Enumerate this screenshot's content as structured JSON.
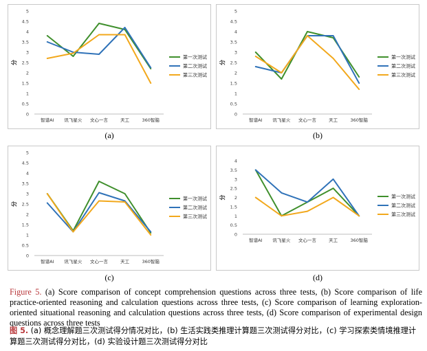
{
  "chart_data": [
    {
      "type": "line",
      "label": "(a)",
      "ylabel": "分",
      "ylim": [
        0,
        5
      ],
      "yticks": [
        "0",
        "0.5",
        "1",
        "1.5",
        "2",
        "2.5",
        "3",
        "3.5",
        "4",
        "4.5",
        "5"
      ],
      "categories": [
        "智谱AI",
        "讯飞星火",
        "文心一言",
        "天工",
        "360智脑"
      ],
      "series": [
        {
          "name": "第一次测试",
          "color": "#3f8f2c",
          "values": [
            3.8,
            2.8,
            4.4,
            4.1,
            2.2
          ]
        },
        {
          "name": "第二次测试",
          "color": "#2f72b8",
          "values": [
            3.5,
            3.0,
            2.9,
            4.2,
            2.25
          ]
        },
        {
          "name": "第三次测试",
          "color": "#f2a81c",
          "values": [
            2.7,
            2.95,
            3.85,
            3.85,
            1.5
          ]
        }
      ]
    },
    {
      "type": "line",
      "label": "(b)",
      "ylabel": "分",
      "ylim": [
        0,
        5
      ],
      "yticks": [
        "0",
        "0.5",
        "1",
        "1.5",
        "2",
        "2.5",
        "3",
        "3.5",
        "4",
        "4.5",
        "5"
      ],
      "categories": [
        "智谱AI",
        "讯飞星火",
        "文心一言",
        "天工",
        "360智脑"
      ],
      "series": [
        {
          "name": "第一次测试",
          "color": "#3f8f2c",
          "values": [
            3.0,
            1.7,
            4.0,
            3.7,
            1.8
          ]
        },
        {
          "name": "第二次测试",
          "color": "#2f72b8",
          "values": [
            2.3,
            2.0,
            3.8,
            3.8,
            1.5
          ]
        },
        {
          "name": "第三次测试",
          "color": "#f2a81c",
          "values": [
            2.8,
            2.0,
            3.8,
            2.7,
            1.2
          ]
        }
      ]
    },
    {
      "type": "line",
      "label": "(c)",
      "ylabel": "分",
      "ylim": [
        0,
        5
      ],
      "yticks": [
        "0",
        "0.5",
        "1",
        "1.5",
        "2",
        "2.5",
        "3",
        "3.5",
        "4",
        "4.5",
        "5"
      ],
      "categories": [
        "智谱AI",
        "讯飞星火",
        "文心一言",
        "天工",
        "360智脑"
      ],
      "series": [
        {
          "name": "第一次测试",
          "color": "#3f8f2c",
          "values": [
            3.0,
            1.2,
            3.6,
            3.0,
            1.1
          ]
        },
        {
          "name": "第二次测试",
          "color": "#2f72b8",
          "values": [
            2.55,
            1.15,
            3.05,
            2.65,
            1.15
          ]
        },
        {
          "name": "第三次测试",
          "color": "#f2a81c",
          "values": [
            3.0,
            1.15,
            2.65,
            2.6,
            1.0
          ]
        }
      ]
    },
    {
      "type": "line",
      "label": "(d)",
      "ylabel": "分",
      "ylim": [
        0,
        4
      ],
      "yticks": [
        "0",
        "0.5",
        "1",
        "1.5",
        "2",
        "2.5",
        "3",
        "3.5",
        "4"
      ],
      "categories": [
        "智谱AI",
        "讯飞星火",
        "文心一言",
        "天工",
        "360智脑"
      ],
      "series": [
        {
          "name": "第一次测试",
          "color": "#3f8f2c",
          "values": [
            3.5,
            1.0,
            1.75,
            2.5,
            1.0
          ]
        },
        {
          "name": "第二次测试",
          "color": "#2f72b8",
          "values": [
            3.5,
            2.25,
            1.75,
            3.0,
            1.0
          ]
        },
        {
          "name": "第三次测试",
          "color": "#f2a81c",
          "values": [
            2.0,
            1.0,
            1.25,
            2.0,
            1.0
          ]
        }
      ]
    }
  ],
  "caption": {
    "en_label": "Figure 5.",
    "en_text": " (a) Score comparison of concept comprehension questions across three tests, (b) Score comparison of life practice-oriented reasoning and calculation questions across three tests, (c) Score comparison of learning exploration-oriented situational reasoning and calculation questions across three tests, (d) Score comparison of experimental design questions across three tests",
    "cn_label": "图 5.",
    "cn_text": " (a) 概念理解题三次测试得分情况对比，(b) 生活实践类推理计算题三次测试得分对比，(c) 学习探索类情境推理计算题三次测试得分对比，(d) 实验设计题三次测试得分对比"
  }
}
